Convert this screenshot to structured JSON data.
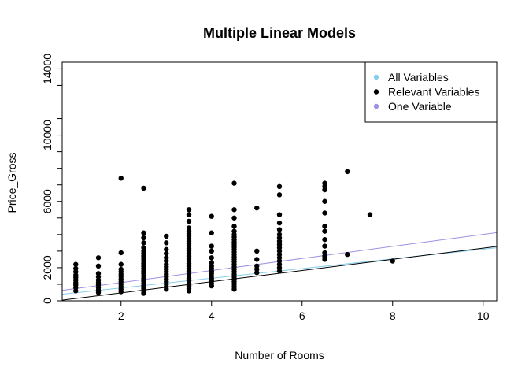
{
  "chart_data": {
    "type": "scatter",
    "title": "Multiple Linear Models",
    "xlabel": "Number of Rooms",
    "ylabel": "Price_Gross",
    "xlim": [
      0.7,
      10.3
    ],
    "ylim": [
      0,
      14400
    ],
    "x_ticks": [
      2,
      4,
      6,
      8,
      10
    ],
    "y_ticks": [
      0,
      2000,
      6000,
      10000,
      14000
    ],
    "legend": {
      "position": "top-right",
      "entries": [
        {
          "label": "All Variables",
          "color": "#87ceeb"
        },
        {
          "label": "Relevant Variables",
          "color": "#000000"
        },
        {
          "label": "One Variable",
          "color": "#9f8fe0"
        }
      ]
    },
    "points": [
      [
        1,
        600
      ],
      [
        1,
        800
      ],
      [
        1,
        950
      ],
      [
        1,
        1100
      ],
      [
        1,
        1250
      ],
      [
        1,
        1400
      ],
      [
        1,
        1550
      ],
      [
        1,
        1750
      ],
      [
        1,
        1950
      ],
      [
        1,
        2200
      ],
      [
        1.5,
        500
      ],
      [
        1.5,
        650
      ],
      [
        1.5,
        800
      ],
      [
        1.5,
        950
      ],
      [
        1.5,
        1100
      ],
      [
        1.5,
        1250
      ],
      [
        1.5,
        1450
      ],
      [
        1.5,
        1650
      ],
      [
        1.5,
        2100
      ],
      [
        1.5,
        2600
      ],
      [
        2,
        550
      ],
      [
        2,
        700
      ],
      [
        2,
        850
      ],
      [
        2,
        1000
      ],
      [
        2,
        1150
      ],
      [
        2,
        1300
      ],
      [
        2,
        1450
      ],
      [
        2,
        1600
      ],
      [
        2,
        1750
      ],
      [
        2,
        1900
      ],
      [
        2,
        2200
      ],
      [
        2,
        2900
      ],
      [
        2,
        7400
      ],
      [
        2.5,
        450
      ],
      [
        2.5,
        600
      ],
      [
        2.5,
        750
      ],
      [
        2.5,
        900
      ],
      [
        2.5,
        1050
      ],
      [
        2.5,
        1200
      ],
      [
        2.5,
        1350
      ],
      [
        2.5,
        1500
      ],
      [
        2.5,
        1650
      ],
      [
        2.5,
        1800
      ],
      [
        2.5,
        1950
      ],
      [
        2.5,
        2100
      ],
      [
        2.5,
        2250
      ],
      [
        2.5,
        2400
      ],
      [
        2.5,
        2550
      ],
      [
        2.5,
        2700
      ],
      [
        2.5,
        2850
      ],
      [
        2.5,
        3000
      ],
      [
        2.5,
        3200
      ],
      [
        2.5,
        3500
      ],
      [
        2.5,
        3800
      ],
      [
        2.5,
        4100
      ],
      [
        2.5,
        6800
      ],
      [
        3,
        700
      ],
      [
        3,
        850
      ],
      [
        3,
        1000
      ],
      [
        3,
        1150
      ],
      [
        3,
        1300
      ],
      [
        3,
        1450
      ],
      [
        3,
        1600
      ],
      [
        3,
        1750
      ],
      [
        3,
        1900
      ],
      [
        3,
        2050
      ],
      [
        3,
        2200
      ],
      [
        3,
        2400
      ],
      [
        3,
        2600
      ],
      [
        3,
        2850
      ],
      [
        3,
        3100
      ],
      [
        3,
        3500
      ],
      [
        3,
        3900
      ],
      [
        3.5,
        600
      ],
      [
        3.5,
        750
      ],
      [
        3.5,
        900
      ],
      [
        3.5,
        1050
      ],
      [
        3.5,
        1200
      ],
      [
        3.5,
        1350
      ],
      [
        3.5,
        1500
      ],
      [
        3.5,
        1650
      ],
      [
        3.5,
        1800
      ],
      [
        3.5,
        1950
      ],
      [
        3.5,
        2100
      ],
      [
        3.5,
        2250
      ],
      [
        3.5,
        2400
      ],
      [
        3.5,
        2550
      ],
      [
        3.5,
        2700
      ],
      [
        3.5,
        2850
      ],
      [
        3.5,
        3000
      ],
      [
        3.5,
        3150
      ],
      [
        3.5,
        3300
      ],
      [
        3.5,
        3450
      ],
      [
        3.5,
        3600
      ],
      [
        3.5,
        3750
      ],
      [
        3.5,
        3900
      ],
      [
        3.5,
        4050
      ],
      [
        3.5,
        4200
      ],
      [
        3.5,
        4400
      ],
      [
        3.5,
        4800
      ],
      [
        3.5,
        5200
      ],
      [
        3.5,
        5500
      ],
      [
        4,
        900
      ],
      [
        4,
        1050
      ],
      [
        4,
        1200
      ],
      [
        4,
        1350
      ],
      [
        4,
        1500
      ],
      [
        4,
        1650
      ],
      [
        4,
        1800
      ],
      [
        4,
        1950
      ],
      [
        4,
        2100
      ],
      [
        4,
        2300
      ],
      [
        4,
        2600
      ],
      [
        4,
        3000
      ],
      [
        4,
        3300
      ],
      [
        4,
        4100
      ],
      [
        4,
        5100
      ],
      [
        4.5,
        700
      ],
      [
        4.5,
        850
      ],
      [
        4.5,
        1000
      ],
      [
        4.5,
        1150
      ],
      [
        4.5,
        1300
      ],
      [
        4.5,
        1450
      ],
      [
        4.5,
        1600
      ],
      [
        4.5,
        1750
      ],
      [
        4.5,
        1900
      ],
      [
        4.5,
        2050
      ],
      [
        4.5,
        2200
      ],
      [
        4.5,
        2350
      ],
      [
        4.5,
        2500
      ],
      [
        4.5,
        2650
      ],
      [
        4.5,
        2800
      ],
      [
        4.5,
        2950
      ],
      [
        4.5,
        3100
      ],
      [
        4.5,
        3250
      ],
      [
        4.5,
        3400
      ],
      [
        4.5,
        3550
      ],
      [
        4.5,
        3700
      ],
      [
        4.5,
        3850
      ],
      [
        4.5,
        4000
      ],
      [
        4.5,
        4200
      ],
      [
        4.5,
        4500
      ],
      [
        4.5,
        5000
      ],
      [
        4.5,
        5500
      ],
      [
        4.5,
        7100
      ],
      [
        5,
        1700
      ],
      [
        5,
        1900
      ],
      [
        5,
        2100
      ],
      [
        5,
        2500
      ],
      [
        5,
        3000
      ],
      [
        5,
        5600
      ],
      [
        5.5,
        1800
      ],
      [
        5.5,
        2000
      ],
      [
        5.5,
        2200
      ],
      [
        5.5,
        2400
      ],
      [
        5.5,
        2600
      ],
      [
        5.5,
        2800
      ],
      [
        5.5,
        3000
      ],
      [
        5.5,
        3200
      ],
      [
        5.5,
        3400
      ],
      [
        5.5,
        3600
      ],
      [
        5.5,
        3800
      ],
      [
        5.5,
        4000
      ],
      [
        5.5,
        4300
      ],
      [
        5.5,
        4700
      ],
      [
        5.5,
        5200
      ],
      [
        5.5,
        6400
      ],
      [
        5.5,
        6900
      ],
      [
        6.5,
        2500
      ],
      [
        6.5,
        2700
      ],
      [
        6.5,
        2900
      ],
      [
        6.5,
        3300
      ],
      [
        6.5,
        3700
      ],
      [
        6.5,
        4200
      ],
      [
        6.5,
        4500
      ],
      [
        6.5,
        5300
      ],
      [
        6.5,
        6000
      ],
      [
        6.5,
        6700
      ],
      [
        6.5,
        6900
      ],
      [
        6.5,
        7100
      ],
      [
        7,
        2800
      ],
      [
        7,
        7800
      ],
      [
        7.5,
        5200
      ],
      [
        8,
        2400
      ]
    ],
    "lines": [
      {
        "label": "All Variables",
        "color": "#87ceeb",
        "x": [
          0.7,
          10.3
        ],
        "y": [
          400,
          3200
        ]
      },
      {
        "label": "Relevant Variables",
        "color": "#000000",
        "x": [
          0.7,
          10.3
        ],
        "y": [
          40,
          3280
        ]
      },
      {
        "label": "One Variable",
        "color": "#9f8fe0",
        "x": [
          0.7,
          10.3
        ],
        "y": [
          630,
          4120
        ]
      }
    ]
  }
}
